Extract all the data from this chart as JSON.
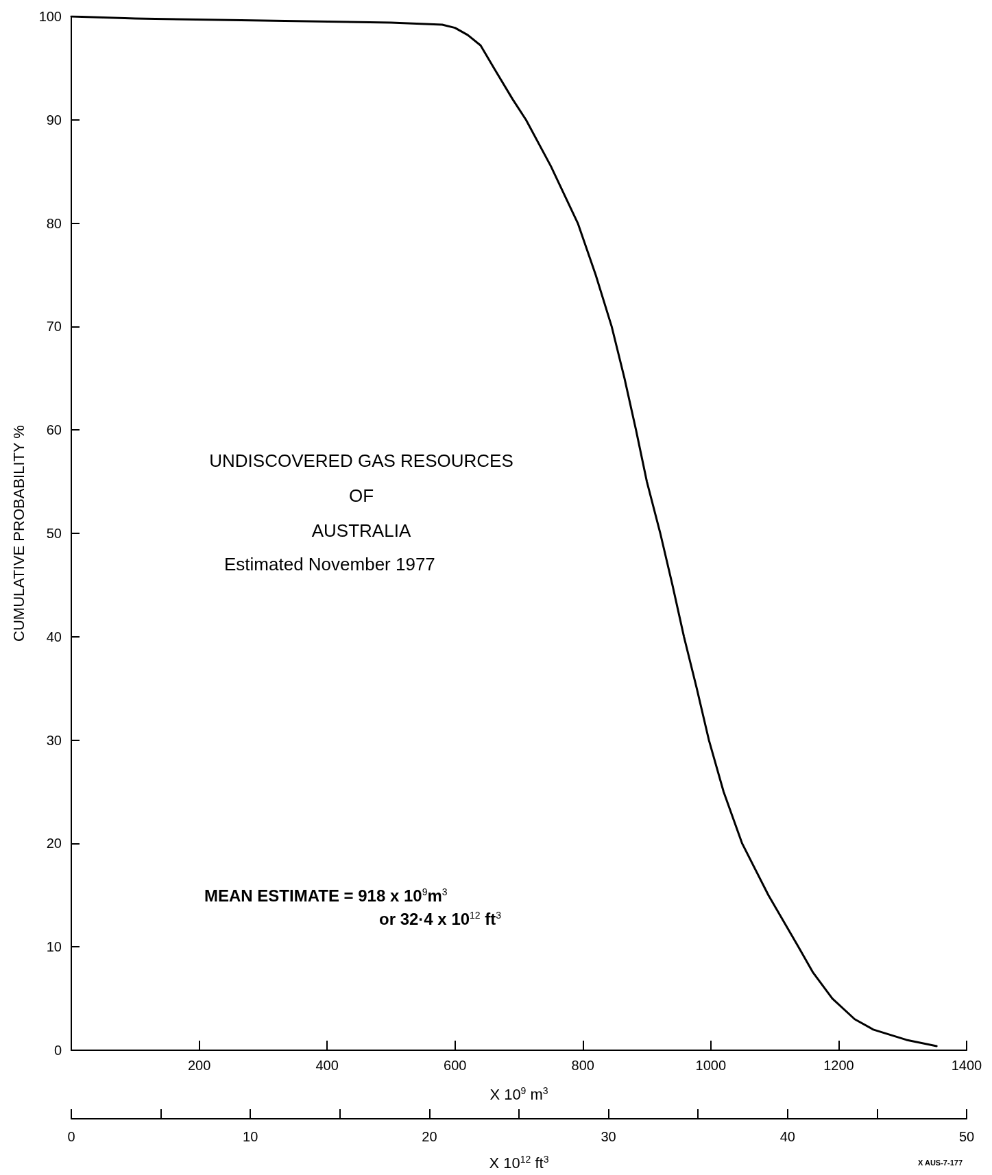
{
  "chart_data": {
    "type": "line",
    "title": "UNDISCOVERED GAS RESOURCES\nOF\nAUSTRALIA",
    "subtitle": "Estimated November 1977",
    "xlabel": "X 10$^{9}$ m$^{3}$",
    "x2label": "X 10$^{12}$ ft$^{3}$",
    "ylabel": "CUMULATIVE PROBABILITY %",
    "annotations": [
      "MEAN ESTIMATE = 918 x 10$^{9}$m$^{3}$",
      "or 32·4 x 10$^{12}$ ft$^{3}$",
      "X AUS-7-177"
    ],
    "x": [
      0,
      100,
      300,
      500,
      580,
      600,
      620,
      640,
      661,
      690,
      711,
      750,
      792,
      820,
      845,
      865,
      883,
      900,
      921,
      940,
      958,
      978,
      997,
      1020,
      1049,
      1090,
      1137,
      1160,
      1190,
      1225,
      1254,
      1306,
      1353
    ],
    "series": [
      {
        "color": "#000000",
        "values": [
          100,
          99.8,
          99.6,
          99.4,
          99.2,
          98.9,
          98.2,
          97.2,
          95,
          92,
          90,
          85.5,
          80,
          75,
          70,
          65,
          60,
          55,
          50,
          45,
          40,
          35,
          30,
          25,
          20,
          15,
          10,
          7.5,
          5,
          3,
          2,
          1,
          0.4
        ]
      }
    ],
    "xlim": [
      0,
      1400
    ],
    "xticks": [
      200,
      400,
      600,
      800,
      1000,
      1200,
      1400
    ],
    "ylim": [
      0,
      100
    ],
    "yticks": [
      0,
      10,
      20,
      30,
      40,
      50,
      60,
      70,
      80,
      90,
      100
    ],
    "x2lim": [
      0,
      50
    ],
    "x2ticks": [
      0,
      10,
      20,
      30,
      40,
      50
    ]
  }
}
